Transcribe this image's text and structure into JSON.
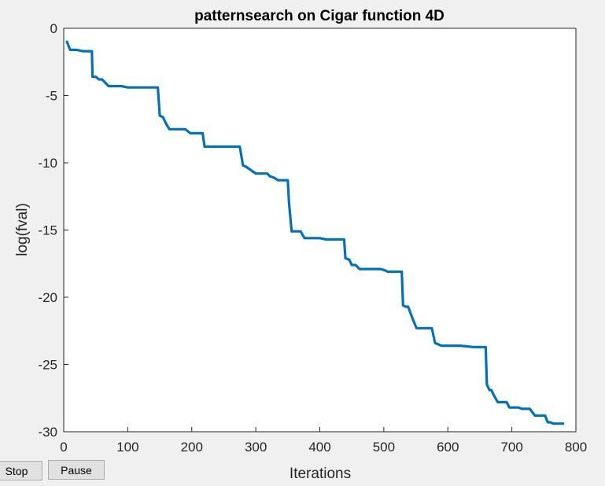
{
  "chart_data": {
    "type": "line",
    "title": "patternsearch on Cigar function 4D",
    "xlabel": "Iterations",
    "ylabel": "log(fval)",
    "xlim": [
      0,
      800
    ],
    "ylim": [
      -30,
      0
    ],
    "xticks": [
      0,
      100,
      200,
      300,
      400,
      500,
      600,
      700,
      800
    ],
    "yticks": [
      0,
      -5,
      -10,
      -15,
      -20,
      -25,
      -30
    ],
    "grid": false,
    "line_color": "#0072bd",
    "series": [
      {
        "x": [
          5,
          10,
          20,
          30,
          44,
          45,
          50,
          55,
          60,
          70,
          90,
          100,
          105,
          130,
          147,
          150,
          155,
          160,
          165,
          190,
          195,
          198,
          217,
          220,
          250,
          270,
          275,
          280,
          285,
          300,
          305,
          318,
          322,
          328,
          335,
          350,
          352,
          356,
          360,
          370,
          376,
          400,
          410,
          438,
          440,
          446,
          450,
          456,
          462,
          495,
          502,
          506,
          512,
          528,
          530,
          534,
          538,
          545,
          551,
          575,
          580,
          590,
          600,
          607,
          620,
          640,
          650,
          659,
          661,
          665,
          668,
          672,
          678,
          688,
          692,
          696,
          710,
          716,
          728,
          736,
          752,
          756,
          760,
          765,
          780
        ],
        "y": [
          -1.0,
          -1.6,
          -1.6,
          -1.7,
          -1.7,
          -3.6,
          -3.6,
          -3.8,
          -3.8,
          -4.3,
          -4.3,
          -4.4,
          -4.4,
          -4.4,
          -4.4,
          -6.5,
          -6.6,
          -7.1,
          -7.5,
          -7.5,
          -7.7,
          -7.8,
          -7.8,
          -8.8,
          -8.8,
          -8.8,
          -8.8,
          -10.2,
          -10.3,
          -10.8,
          -10.8,
          -10.8,
          -11.0,
          -11.1,
          -11.3,
          -11.3,
          -13.0,
          -15.1,
          -15.1,
          -15.1,
          -15.6,
          -15.6,
          -15.7,
          -15.7,
          -17.1,
          -17.2,
          -17.6,
          -17.6,
          -17.9,
          -17.9,
          -18.0,
          -18.1,
          -18.1,
          -18.1,
          -20.6,
          -20.7,
          -20.7,
          -21.6,
          -22.3,
          -22.3,
          -23.4,
          -23.6,
          -23.6,
          -23.6,
          -23.6,
          -23.7,
          -23.7,
          -23.7,
          -26.5,
          -26.9,
          -26.9,
          -27.3,
          -27.8,
          -27.8,
          -27.8,
          -28.2,
          -28.2,
          -28.3,
          -28.3,
          -28.8,
          -28.8,
          -29.3,
          -29.3,
          -29.4,
          -29.4
        ]
      }
    ]
  },
  "buttons": {
    "stop_label": "Stop",
    "pause_label": "Pause"
  }
}
